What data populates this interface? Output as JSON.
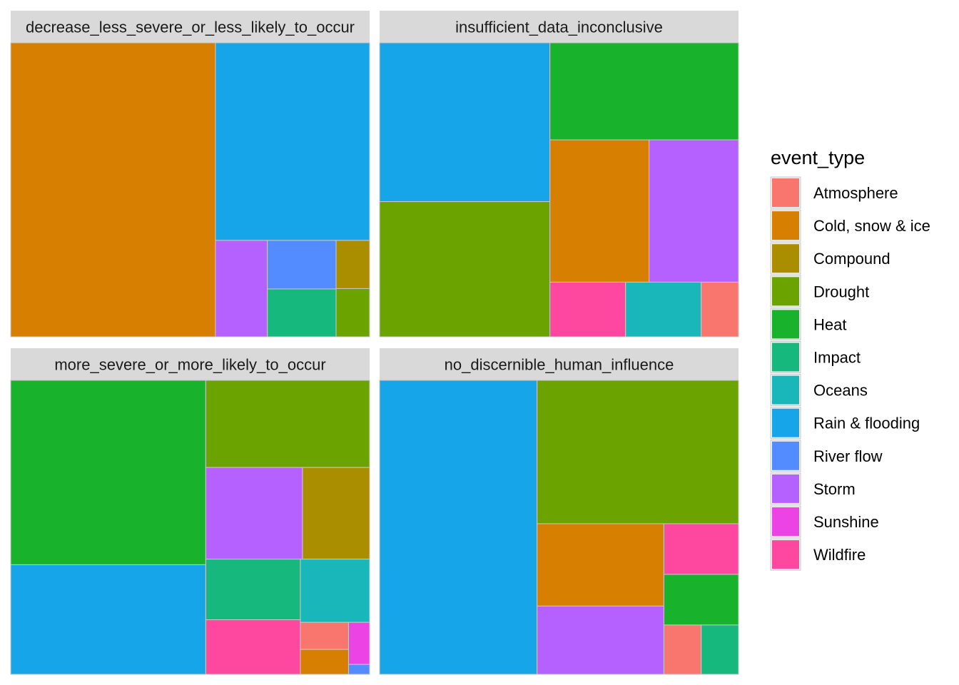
{
  "chart_data": {
    "type": "treemap",
    "facet_variable": "",
    "legend": {
      "title": "event_type",
      "placement": "right",
      "entries": [
        {
          "label": "Atmosphere",
          "color": "#F8766D"
        },
        {
          "label": "Cold, snow & ice",
          "color": "#D77F00"
        },
        {
          "label": "Compound",
          "color": "#AA8E00"
        },
        {
          "label": "Drought",
          "color": "#6BA300"
        },
        {
          "label": "Heat",
          "color": "#18B22C"
        },
        {
          "label": "Impact",
          "color": "#17B87D"
        },
        {
          "label": "Oceans",
          "color": "#19B6BA"
        },
        {
          "label": "Rain & flooding",
          "color": "#16A5E8"
        },
        {
          "label": "River flow",
          "color": "#538CFF"
        },
        {
          "label": "Storm",
          "color": "#B561FF"
        },
        {
          "label": "Sunshine",
          "color": "#EB43E4"
        },
        {
          "label": "Wildfire",
          "color": "#FE48A0"
        }
      ]
    },
    "panels": [
      {
        "title": "decrease_less_severe_or_less_likely_to_occur",
        "cells": [
          {
            "event_type": "Cold, snow & ice",
            "value": 115.4
          },
          {
            "event_type": "Rain & flooding",
            "value": 58.4
          },
          {
            "event_type": "Storm",
            "value": 9.6
          },
          {
            "event_type": "Impact",
            "value": 6.3
          },
          {
            "event_type": "River flow",
            "value": 6.4
          },
          {
            "event_type": "Compound",
            "value": 3.1
          },
          {
            "event_type": "Drought",
            "value": 3.1
          }
        ]
      },
      {
        "title": "insufficient_data_inconclusive",
        "cells": [
          {
            "event_type": "Rain & flooding",
            "value": 50.4
          },
          {
            "event_type": "Drought",
            "value": 42.9
          },
          {
            "event_type": "Heat",
            "value": 34.1
          },
          {
            "event_type": "Cold, snow & ice",
            "value": 26.3
          },
          {
            "event_type": "Storm",
            "value": 23.7
          },
          {
            "event_type": "Wildfire",
            "value": 7.7
          },
          {
            "event_type": "Oceans",
            "value": 7.7
          },
          {
            "event_type": "Atmosphere",
            "value": 3.8
          }
        ]
      },
      {
        "title": "more_severe_or_more_likely_to_occur",
        "cells": [
          {
            "event_type": "Heat",
            "value": 69.0
          },
          {
            "event_type": "Rain & flooding",
            "value": 41.0
          },
          {
            "event_type": "Drought",
            "value": 27.4
          },
          {
            "event_type": "Storm",
            "value": 17.0
          },
          {
            "event_type": "Compound",
            "value": 11.8
          },
          {
            "event_type": "Impact",
            "value": 11.0
          },
          {
            "event_type": "Wildfire",
            "value": 9.9
          },
          {
            "event_type": "Oceans",
            "value": 8.4
          },
          {
            "event_type": "Atmosphere",
            "value": 2.5
          },
          {
            "event_type": "Cold, snow & ice",
            "value": 2.3
          },
          {
            "event_type": "Sunshine",
            "value": 1.7
          },
          {
            "event_type": "River flow",
            "value": 0.4
          }
        ]
      },
      {
        "title": "no_discernible_human_influence",
        "cells": [
          {
            "event_type": "Rain & flooding",
            "value": 93.1
          },
          {
            "event_type": "Drought",
            "value": 58.1
          },
          {
            "event_type": "Cold, snow & ice",
            "value": 21.0
          },
          {
            "event_type": "Storm",
            "value": 17.4
          },
          {
            "event_type": "Wildfire",
            "value": 7.6
          },
          {
            "event_type": "Heat",
            "value": 7.6
          },
          {
            "event_type": "Atmosphere",
            "value": 3.7
          },
          {
            "event_type": "Impact",
            "value": 3.7
          }
        ]
      }
    ]
  }
}
